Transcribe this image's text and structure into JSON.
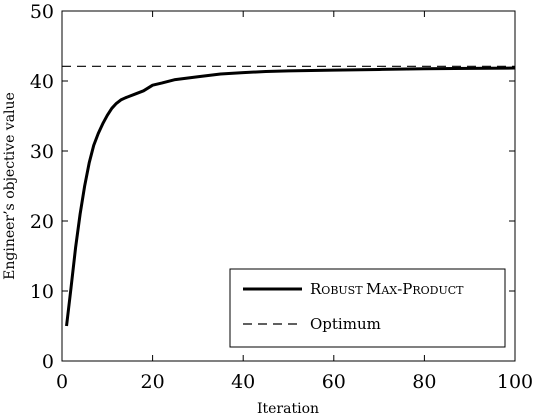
{
  "chart_data": {
    "type": "line",
    "xlabel": "Iteration",
    "ylabel": "Engineer’s objective value",
    "xlim": [
      0,
      100
    ],
    "ylim": [
      0,
      50
    ],
    "xticks": [
      0,
      20,
      40,
      60,
      80,
      100
    ],
    "yticks": [
      0,
      10,
      20,
      30,
      40,
      50
    ],
    "grid": false,
    "legend_position": "bottom-right",
    "series": [
      {
        "name": "Robust Max-Product",
        "legend_label": {
          "first": "R",
          "first_small": "OBUST ",
          "second": "M",
          "second_small": "AX",
          "sep": "-",
          "third": "P",
          "third_small": "RODUCT"
        },
        "style": "solid",
        "color": "#000000",
        "x": [
          1,
          2,
          3,
          4,
          5,
          6,
          7,
          8,
          9,
          10,
          11,
          12,
          13,
          14,
          16,
          18,
          20,
          22,
          25,
          30,
          35,
          40,
          45,
          50,
          60,
          70,
          80,
          90,
          100
        ],
        "y": [
          5.0,
          10.5,
          16.2,
          21.0,
          25.0,
          28.3,
          30.8,
          32.5,
          33.9,
          35.1,
          36.1,
          36.8,
          37.3,
          37.6,
          38.1,
          38.6,
          39.4,
          39.7,
          40.2,
          40.6,
          41.0,
          41.2,
          41.35,
          41.45,
          41.55,
          41.65,
          41.75,
          41.8,
          41.85
        ]
      },
      {
        "name": "Optimum",
        "style": "dashed",
        "color": "#000000",
        "x": [
          0,
          100
        ],
        "y": [
          42.1,
          42.1
        ]
      }
    ]
  }
}
